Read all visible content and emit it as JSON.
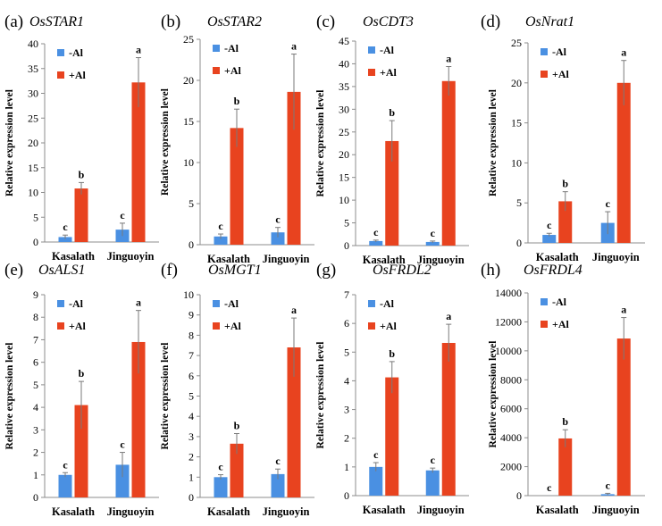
{
  "colors": {
    "minus_al": "#4a90e2",
    "plus_al": "#e8431f",
    "axis": "#8c8c8c",
    "error": "#7a7a7a"
  },
  "chart_data": [
    {
      "type": "bar",
      "panel": "(a)",
      "title": "OsSTAR1",
      "ylabel": "Relative expression level",
      "ylim": [
        0,
        40
      ],
      "yticks": [
        "0",
        "5",
        "10",
        "15",
        "20",
        "25",
        "30",
        "35",
        "40"
      ],
      "categories": [
        "Kasalath",
        "Jinguoyin"
      ],
      "series": [
        {
          "name": "-Al",
          "values": [
            1.0,
            2.5
          ],
          "errors": [
            0.4,
            1.3
          ],
          "letters": [
            "c",
            "c"
          ]
        },
        {
          "name": "+Al",
          "values": [
            10.8,
            32.2
          ],
          "errors": [
            1.2,
            5.0
          ],
          "letters": [
            "b",
            "a"
          ]
        }
      ]
    },
    {
      "type": "bar",
      "panel": "(b)",
      "title": "OsSTAR2",
      "ylabel": "Relative expression level",
      "ylim": [
        0,
        25
      ],
      "yticks": [
        "0",
        "5",
        "10",
        "15",
        "20",
        "25"
      ],
      "categories": [
        "Kasalath",
        "Jinguoyin"
      ],
      "series": [
        {
          "name": "-Al",
          "values": [
            1.0,
            1.5
          ],
          "errors": [
            0.3,
            0.6
          ],
          "letters": [
            "c",
            "c"
          ]
        },
        {
          "name": "+Al",
          "values": [
            14.2,
            18.6
          ],
          "errors": [
            2.3,
            4.6
          ],
          "letters": [
            "b",
            "a"
          ]
        }
      ]
    },
    {
      "type": "bar",
      "panel": "(c)",
      "title": "OsCDT3",
      "ylabel": "Relative expression level",
      "ylim": [
        0,
        45
      ],
      "yticks": [
        "0",
        "5",
        "10",
        "15",
        "20",
        "25",
        "30",
        "35",
        "40",
        "45"
      ],
      "categories": [
        "Kasalath",
        "Jinguoyin"
      ],
      "series": [
        {
          "name": "-Al",
          "values": [
            1.0,
            0.8
          ],
          "errors": [
            0.2,
            0.2
          ],
          "letters": [
            "c",
            "c"
          ]
        },
        {
          "name": "+Al",
          "values": [
            23.0,
            36.2
          ],
          "errors": [
            4.5,
            3.2
          ],
          "letters": [
            "b",
            "a"
          ]
        }
      ]
    },
    {
      "type": "bar",
      "panel": "(d)",
      "title": "OsNrat1",
      "ylabel": "Relative expression level",
      "ylim": [
        0,
        25
      ],
      "yticks": [
        "0",
        "5",
        "10",
        "15",
        "20",
        "25"
      ],
      "categories": [
        "Kasalath",
        "Jinguoyin"
      ],
      "series": [
        {
          "name": "-Al",
          "values": [
            1.0,
            2.5
          ],
          "errors": [
            0.2,
            1.4
          ],
          "letters": [
            "c",
            "c"
          ]
        },
        {
          "name": "+Al",
          "values": [
            5.2,
            20.0
          ],
          "errors": [
            1.2,
            2.8
          ],
          "letters": [
            "b",
            "a"
          ]
        }
      ]
    },
    {
      "type": "bar",
      "panel": "(e)",
      "title": "OsALS1",
      "ylabel": "Relative expression level",
      "ylim": [
        0,
        9
      ],
      "yticks": [
        "0",
        "1",
        "2",
        "3",
        "4",
        "5",
        "6",
        "7",
        "8",
        "9"
      ],
      "categories": [
        "Kasalath",
        "Jinguoyin"
      ],
      "series": [
        {
          "name": "-Al",
          "values": [
            1.0,
            1.45
          ],
          "errors": [
            0.1,
            0.55
          ],
          "letters": [
            "c",
            "c"
          ]
        },
        {
          "name": "+Al",
          "values": [
            4.1,
            6.9
          ],
          "errors": [
            1.05,
            1.4
          ],
          "letters": [
            "b",
            "a"
          ]
        }
      ]
    },
    {
      "type": "bar",
      "panel": "(f)",
      "title": "OsMGT1",
      "ylabel": "Relative expression level",
      "ylim": [
        0,
        10
      ],
      "yticks": [
        "0",
        "1",
        "2",
        "3",
        "4",
        "5",
        "6",
        "7",
        "8",
        "9",
        "10"
      ],
      "categories": [
        "Kasalath",
        "Jinguoyin"
      ],
      "series": [
        {
          "name": "-Al",
          "values": [
            1.0,
            1.15
          ],
          "errors": [
            0.12,
            0.25
          ],
          "letters": [
            "c",
            "c"
          ]
        },
        {
          "name": "+Al",
          "values": [
            2.65,
            7.4
          ],
          "errors": [
            0.5,
            1.45
          ],
          "letters": [
            "b",
            "a"
          ]
        }
      ]
    },
    {
      "type": "bar",
      "panel": "(g)",
      "title": "OsFRDL2",
      "ylabel": "Relative expression level",
      "ylim": [
        0,
        7
      ],
      "yticks": [
        "0",
        "1",
        "2",
        "3",
        "4",
        "5",
        "6",
        "7"
      ],
      "categories": [
        "Kasalath",
        "Jinguoyin"
      ],
      "series": [
        {
          "name": "-Al",
          "values": [
            1.0,
            0.88
          ],
          "errors": [
            0.15,
            0.08
          ],
          "letters": [
            "c",
            "c"
          ]
        },
        {
          "name": "+Al",
          "values": [
            4.12,
            5.32
          ],
          "errors": [
            0.55,
            0.65
          ],
          "letters": [
            "b",
            "a"
          ]
        }
      ]
    },
    {
      "type": "bar",
      "panel": "(h)",
      "title": "OsFRDL4",
      "ylabel": "Relative expression level",
      "ylim": [
        0,
        14000
      ],
      "yticks": [
        "0",
        "2000",
        "4000",
        "6000",
        "8000",
        "10000",
        "12000",
        "14000"
      ],
      "categories": [
        "Kasalath",
        "Jinguoyin"
      ],
      "series": [
        {
          "name": "-Al",
          "values": [
            1,
            100
          ],
          "errors": [
            0,
            60
          ],
          "letters": [
            "c",
            "c"
          ]
        },
        {
          "name": "+Al",
          "values": [
            3950,
            10850
          ],
          "errors": [
            600,
            1450
          ],
          "letters": [
            "b",
            "a"
          ]
        }
      ]
    }
  ]
}
